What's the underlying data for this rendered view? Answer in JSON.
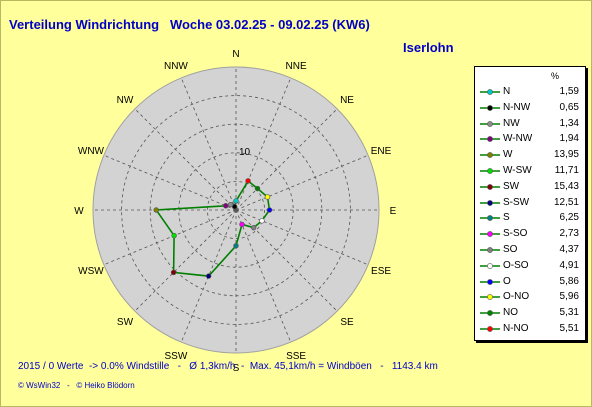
{
  "header": {
    "title": "Verteilung Windrichtung   Woche 03.02.25 - 09.02.25 (KW6)",
    "location": "Iserlohn"
  },
  "footer": {
    "stats": "2015 / 0 Werte  -> 0.0% Windstille   -   Ø 1,3km/h  -  Max. 45,1km/h = Windböen   -   1143.4 km",
    "credits": "© WsWin32   -   © Heiko Blödorn"
  },
  "legend": {
    "unit": "%"
  },
  "colors": {
    "background": "#ffff9c",
    "plot_fill": "#d3d3d3",
    "line": "#008000",
    "text": "#0000c8"
  },
  "chart_data": {
    "type": "polar-line",
    "directions": [
      "N",
      "NNE",
      "NE",
      "ENE",
      "E",
      "ESE",
      "SE",
      "SSE",
      "S",
      "SSW",
      "SW",
      "WSW",
      "W",
      "WNW",
      "NW",
      "NNW"
    ],
    "ring_label": "10",
    "ring_label_value": 10,
    "rmax": 25,
    "rings": [
      5,
      10,
      15,
      20,
      25
    ],
    "series": [
      {
        "name": "N",
        "value": 1.59,
        "color": "#00c8c8"
      },
      {
        "name": "N-NW",
        "value": 0.65,
        "color": "#000000"
      },
      {
        "name": "NW",
        "value": 1.34,
        "color": "#8c8c8c"
      },
      {
        "name": "W-NW",
        "value": 1.94,
        "color": "#800080"
      },
      {
        "name": "W",
        "value": 13.95,
        "color": "#808000"
      },
      {
        "name": "W-SW",
        "value": 11.71,
        "color": "#00e000"
      },
      {
        "name": "SW",
        "value": 15.43,
        "color": "#800000"
      },
      {
        "name": "S-SW",
        "value": 12.51,
        "color": "#000080"
      },
      {
        "name": "S",
        "value": 6.25,
        "color": "#008080"
      },
      {
        "name": "S-SO",
        "value": 2.73,
        "color": "#ff00ff"
      },
      {
        "name": "SO",
        "value": 4.37,
        "color": "#808080"
      },
      {
        "name": "O-SO",
        "value": 4.91,
        "color": "#ffffff"
      },
      {
        "name": "O",
        "value": 5.86,
        "color": "#0000ff"
      },
      {
        "name": "O-NO",
        "value": 5.96,
        "color": "#ffff00"
      },
      {
        "name": "NO",
        "value": 5.31,
        "color": "#008000"
      },
      {
        "name": "N-NO",
        "value": 5.51,
        "color": "#ff0000"
      }
    ],
    "series_angle_deg": [
      0,
      337.5,
      315,
      292.5,
      270,
      247.5,
      225,
      202.5,
      180,
      157.5,
      135,
      112.5,
      90,
      67.5,
      45,
      22.5
    ]
  }
}
